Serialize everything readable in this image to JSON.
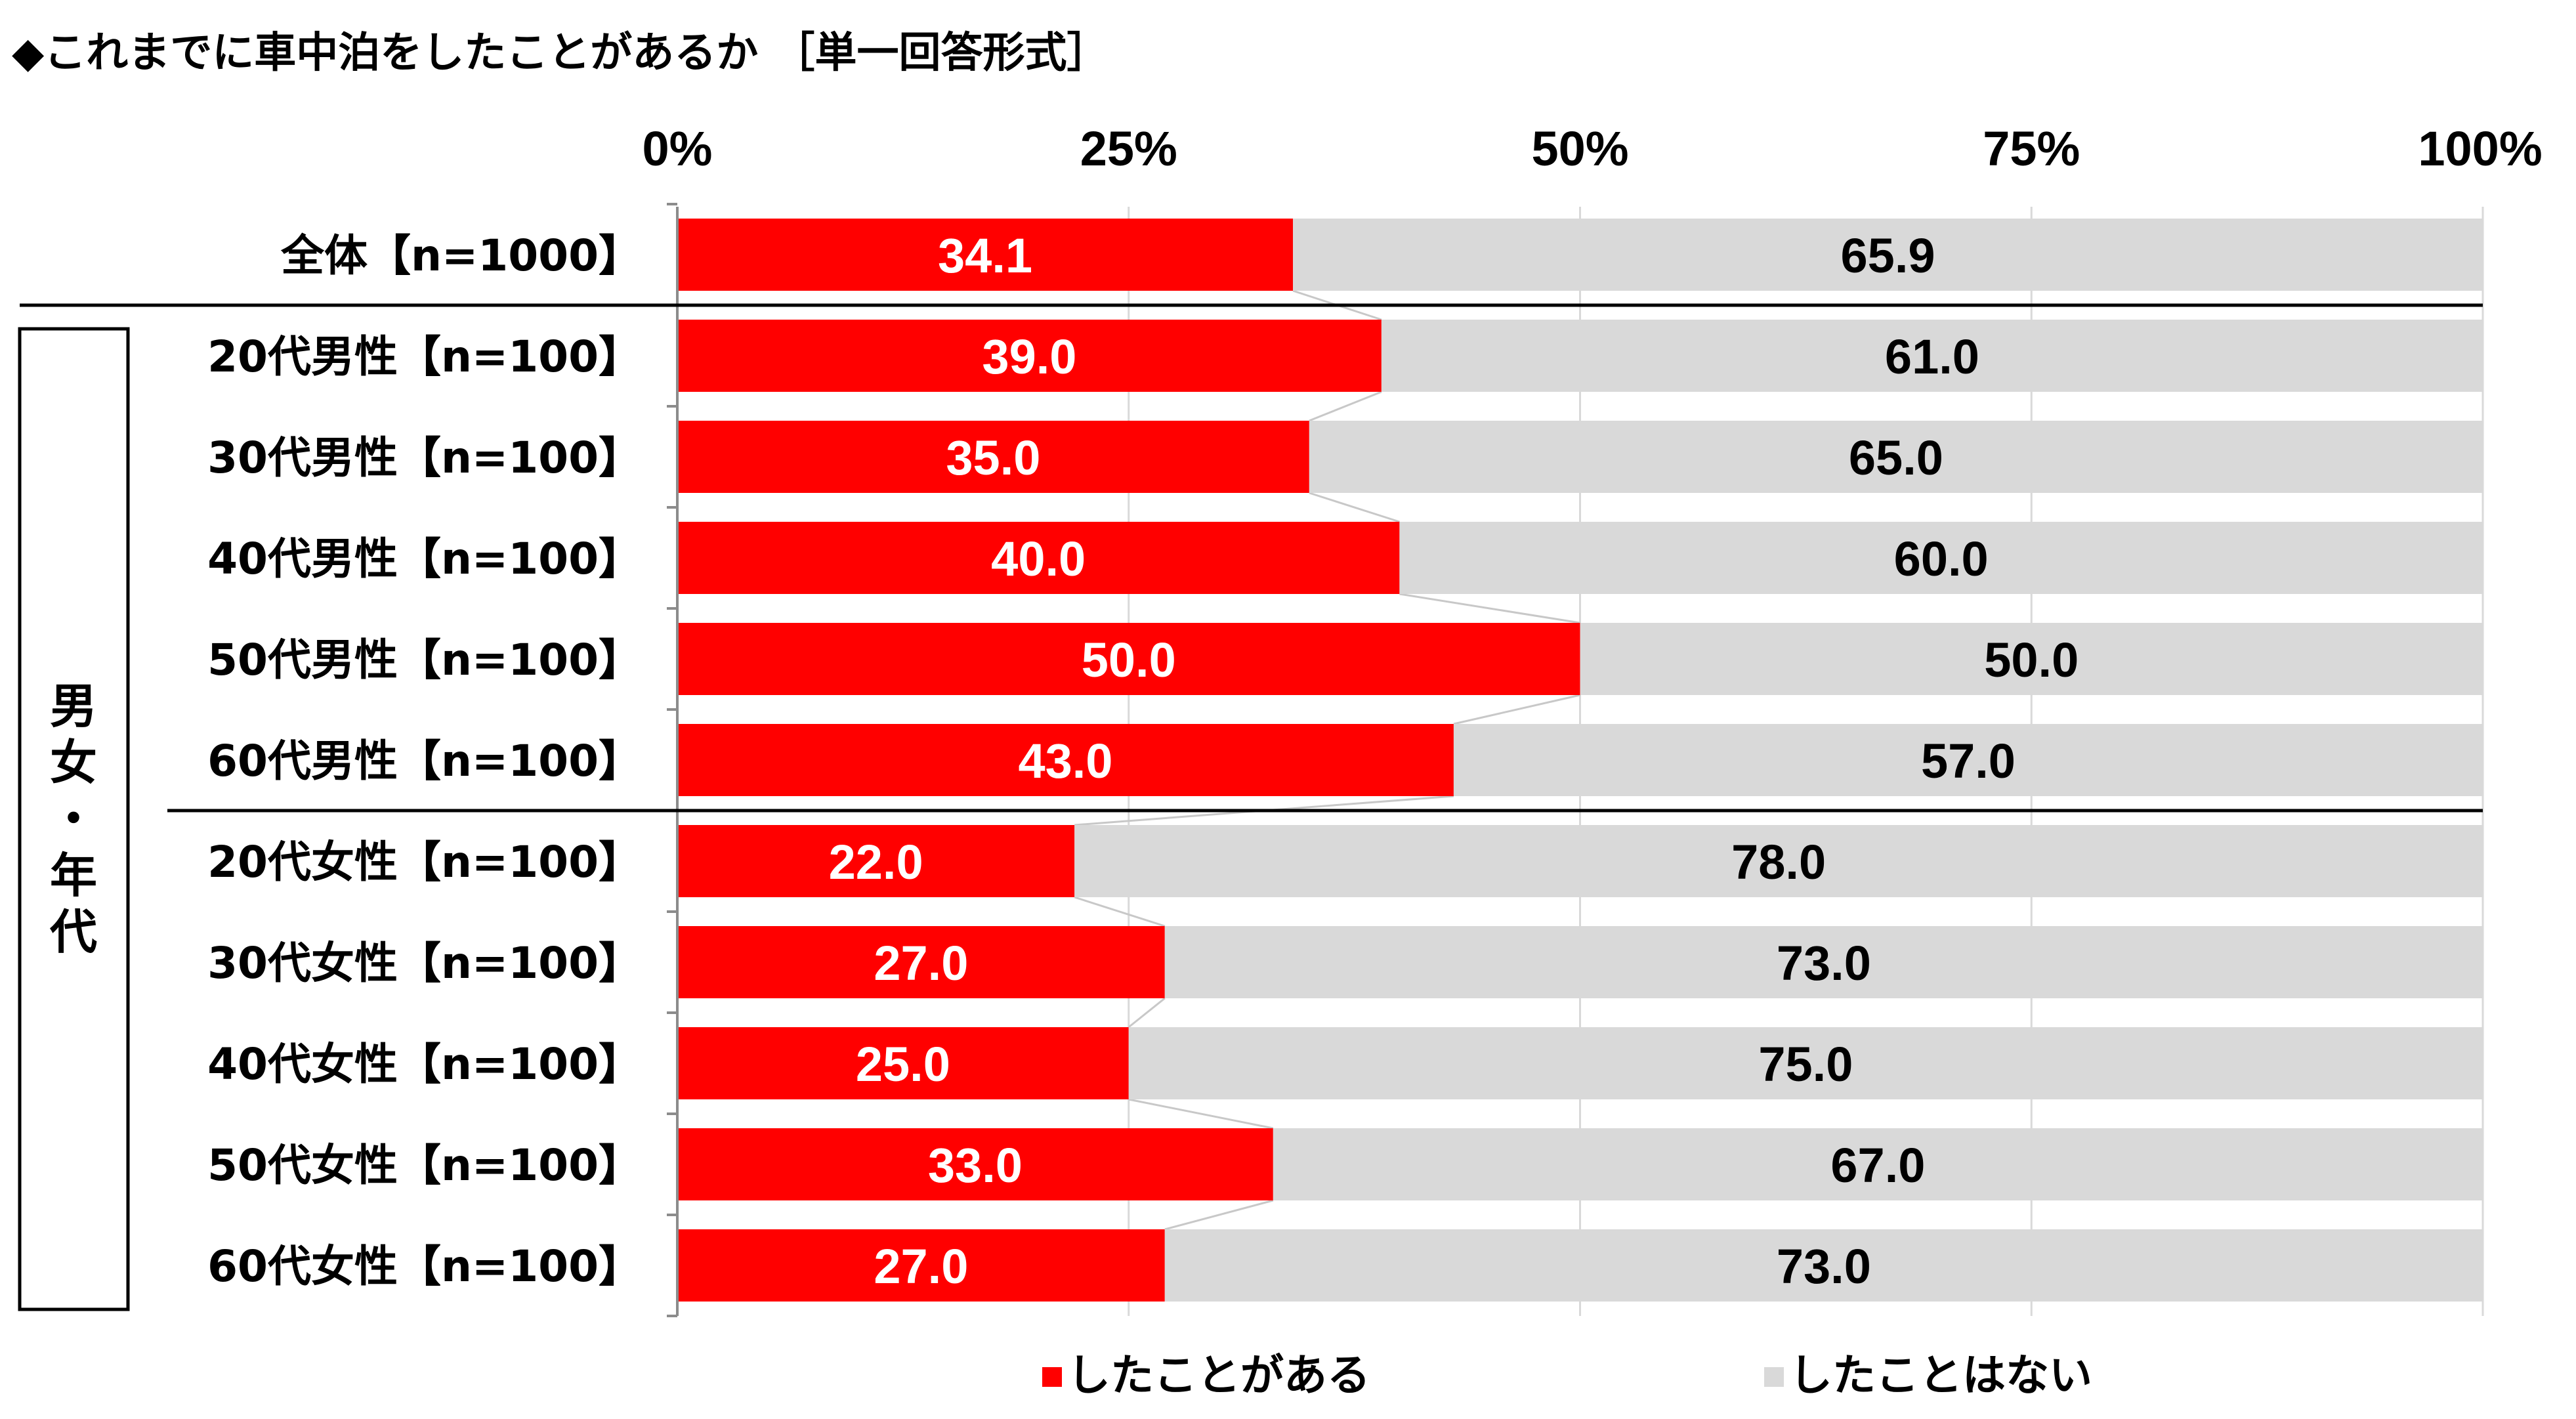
{
  "chart_data": {
    "type": "bar",
    "orientation": "horizontal",
    "stacked": "percent",
    "title": "◆これまでに車中泊をしたことがあるか ［単一回答形式］",
    "x_ticks": [
      "0%",
      "25%",
      "50%",
      "75%",
      "100%"
    ],
    "xlim": [
      0,
      100
    ],
    "categories": [
      "全体【n=1000】",
      "20代男性【n=100】",
      "30代男性【n=100】",
      "40代男性【n=100】",
      "50代男性【n=100】",
      "60代男性【n=100】",
      "20代女性【n=100】",
      "30代女性【n=100】",
      "40代女性【n=100】",
      "50代女性【n=100】",
      "60代女性【n=100】"
    ],
    "series": [
      {
        "name": "したことがある",
        "color": "#ff0000",
        "label_color": "#ffffff",
        "values": [
          34.1,
          39.0,
          35.0,
          40.0,
          50.0,
          43.0,
          22.0,
          27.0,
          25.0,
          33.0,
          27.0
        ],
        "labels": [
          "34.1",
          "39.0",
          "35.0",
          "40.0",
          "50.0",
          "43.0",
          "22.0",
          "27.0",
          "25.0",
          "33.0",
          "27.0"
        ]
      },
      {
        "name": "したことはない",
        "color": "#d9d9d9",
        "label_color": "#000000",
        "values": [
          65.9,
          61.0,
          65.0,
          60.0,
          50.0,
          57.0,
          78.0,
          73.0,
          75.0,
          67.0,
          73.0
        ],
        "labels": [
          "65.9",
          "61.0",
          "65.0",
          "60.0",
          "50.0",
          "57.0",
          "78.0",
          "73.0",
          "75.0",
          "67.0",
          "73.0"
        ]
      }
    ],
    "group_label": "男女・年代",
    "legend_position": "bottom"
  }
}
